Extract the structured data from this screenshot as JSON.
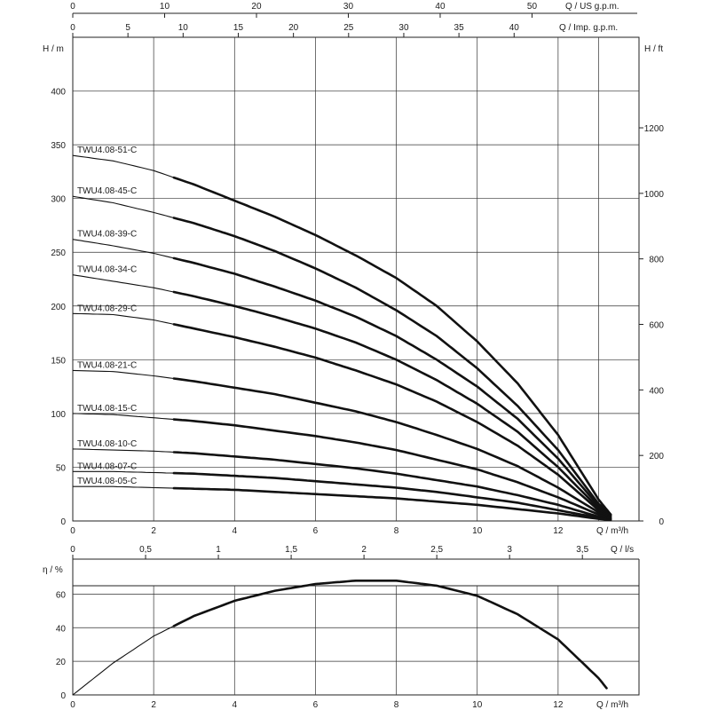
{
  "chart_data": [
    {
      "type": "line",
      "title": "",
      "xlabel": "Q / m³/h",
      "ylabel": "H / m",
      "y2label": "H / ft",
      "x2label_top": "Q / US g.p.m.",
      "x3label_top": "Q / Imp. g.p.m.",
      "xlim": [
        0,
        14
      ],
      "ylim": [
        0,
        450
      ],
      "x_ticks": [
        0,
        2,
        4,
        6,
        8,
        10,
        12
      ],
      "y_ticks": [
        0,
        50,
        100,
        150,
        200,
        250,
        300,
        350,
        400
      ],
      "ft_ticks": [
        0,
        200,
        400,
        600,
        800,
        1000,
        1200
      ],
      "usgpm_ticks": [
        0,
        10,
        20,
        30,
        40,
        50
      ],
      "impgpm_ticks": [
        0,
        5,
        10,
        15,
        20,
        25,
        30,
        35,
        40
      ],
      "grid": true,
      "recommended_range_m3h": [
        2.5,
        13
      ],
      "series": [
        {
          "name": "TWU4.08-51-C",
          "x": [
            0,
            1,
            2,
            3,
            4,
            5,
            6,
            7,
            8,
            9,
            10,
            11,
            12,
            13,
            13.3
          ],
          "values": [
            340,
            335,
            326,
            313,
            298,
            283,
            266,
            247,
            226,
            200,
            167,
            128,
            80,
            20,
            6
          ]
        },
        {
          "name": "TWU4.08-45-C",
          "x": [
            0,
            1,
            2,
            3,
            4,
            5,
            6,
            7,
            8,
            9,
            10,
            11,
            12,
            13,
            13.3
          ],
          "values": [
            302,
            296,
            287,
            277,
            265,
            251,
            235,
            217,
            196,
            172,
            142,
            107,
            66,
            16,
            6
          ]
        },
        {
          "name": "TWU4.08-39-C",
          "x": [
            0,
            1,
            2,
            3,
            4,
            5,
            6,
            7,
            8,
            9,
            10,
            11,
            12,
            13,
            13.3
          ],
          "values": [
            262,
            256,
            249,
            240,
            230,
            218,
            205,
            190,
            172,
            150,
            125,
            95,
            58,
            14,
            5
          ]
        },
        {
          "name": "TWU4.08-34-C",
          "x": [
            0,
            1,
            2,
            3,
            4,
            5,
            6,
            7,
            8,
            9,
            10,
            11,
            12,
            13,
            13.3
          ],
          "values": [
            229,
            223,
            217,
            209,
            200,
            190,
            179,
            166,
            150,
            131,
            109,
            83,
            50,
            12,
            5
          ]
        },
        {
          "name": "TWU4.08-29-C",
          "x": [
            0,
            1,
            2,
            3,
            4,
            5,
            6,
            7,
            8,
            9,
            10,
            11,
            12,
            13,
            13.3
          ],
          "values": [
            193,
            192,
            187,
            179,
            171,
            162,
            152,
            140,
            127,
            111,
            92,
            70,
            43,
            10,
            4
          ]
        },
        {
          "name": "TWU4.08-21-C",
          "x": [
            0,
            1,
            2,
            3,
            4,
            5,
            6,
            7,
            8,
            9,
            10,
            11,
            12,
            13,
            13.3
          ],
          "values": [
            140,
            139,
            135,
            130,
            124,
            118,
            110,
            102,
            92,
            80,
            67,
            51,
            31,
            8,
            3
          ]
        },
        {
          "name": "TWU4.08-15-C",
          "x": [
            0,
            1,
            2,
            3,
            4,
            5,
            6,
            7,
            8,
            9,
            10,
            11,
            12,
            13,
            13.3
          ],
          "values": [
            100,
            99,
            96,
            93,
            89,
            84,
            79,
            73,
            66,
            57,
            48,
            36,
            22,
            6,
            2
          ]
        },
        {
          "name": "TWU4.08-10-C",
          "x": [
            0,
            1,
            2,
            3,
            4,
            5,
            6,
            7,
            8,
            9,
            10,
            11,
            12,
            13,
            13.3
          ],
          "values": [
            67,
            66,
            65,
            63,
            60,
            57,
            53,
            49,
            44,
            38,
            32,
            24,
            15,
            4,
            2
          ]
        },
        {
          "name": "TWU4.08-07-C",
          "x": [
            0,
            1,
            2,
            3,
            4,
            5,
            6,
            7,
            8,
            9,
            10,
            11,
            12,
            13,
            13.3
          ],
          "values": [
            46,
            46,
            45,
            44,
            42,
            40,
            37,
            34,
            31,
            27,
            22,
            17,
            10,
            3,
            1
          ]
        },
        {
          "name": "TWU4.08-05-C",
          "x": [
            0,
            1,
            2,
            3,
            4,
            5,
            6,
            7,
            8,
            9,
            10,
            11,
            12,
            13,
            13.3
          ],
          "values": [
            32,
            32,
            31,
            30,
            29,
            27,
            25,
            23,
            21,
            18,
            15,
            11,
            7,
            2,
            1
          ]
        }
      ]
    },
    {
      "type": "line",
      "title": "",
      "xlabel": "Q / m³/h",
      "ylabel": "η / %",
      "x2label_top": "Q / l/s",
      "xlim": [
        0,
        14
      ],
      "ylim": [
        0,
        80
      ],
      "x_ticks": [
        0,
        2,
        4,
        6,
        8,
        10,
        12
      ],
      "y_ticks": [
        0,
        20,
        40,
        60
      ],
      "ls_ticks": [
        "0",
        "0,5",
        "1",
        "1,5",
        "2",
        "2,5",
        "3",
        "3,5"
      ],
      "grid": true,
      "recommended_range_m3h": [
        2.5,
        13
      ],
      "series": [
        {
          "x": [
            0,
            1,
            2,
            3,
            4,
            5,
            6,
            7,
            8,
            9,
            10,
            11,
            12,
            13,
            13.2
          ],
          "values": [
            0,
            19,
            35,
            47,
            56,
            62,
            66,
            68,
            68,
            65,
            59,
            48,
            33,
            10,
            4
          ]
        }
      ]
    }
  ]
}
